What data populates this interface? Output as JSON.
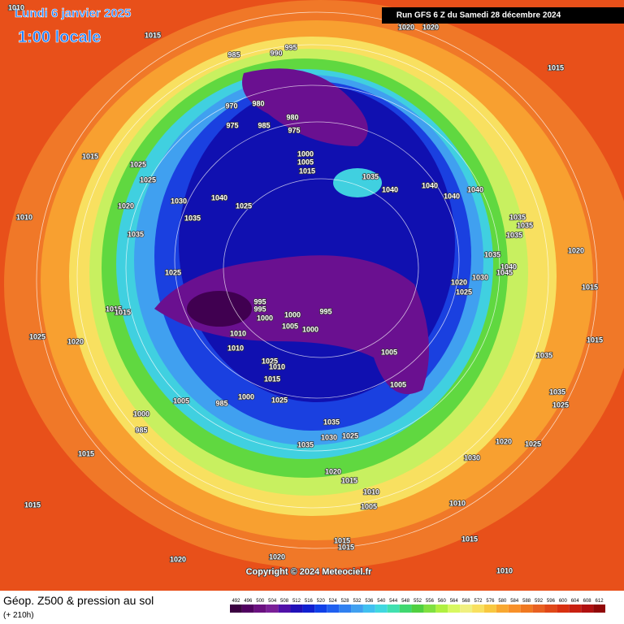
{
  "header": {
    "date": "Lundi 6 janvier 2025",
    "time": "1:00 locale",
    "run": "Run GFS 6 Z du Samedi 28 décembre 2024"
  },
  "footer": {
    "title": "Géop. Z500 & pression au sol",
    "lead": "(+ 210h)",
    "copyright": "Copyright © 2024 Meteociel.fr"
  },
  "colorbar": {
    "ticks": [
      492,
      496,
      500,
      504,
      508,
      512,
      516,
      520,
      524,
      528,
      532,
      536,
      540,
      544,
      548,
      552,
      556,
      560,
      564,
      568,
      572,
      576,
      580,
      584,
      588,
      592,
      596,
      600,
      604,
      608,
      612
    ],
    "colors": [
      "#3a0040",
      "#500060",
      "#6a1080",
      "#7a2098",
      "#5010a8",
      "#2010b8",
      "#1020d0",
      "#1040e8",
      "#2060f0",
      "#3080f0",
      "#40a0f0",
      "#40c0f0",
      "#40d8e0",
      "#40e0b0",
      "#40d870",
      "#50d040",
      "#80e040",
      "#b0f040",
      "#d8f860",
      "#f0f080",
      "#f8e060",
      "#f8c840",
      "#f8a830",
      "#f89028",
      "#f07820",
      "#e86020",
      "#e04818",
      "#d83010",
      "#c82010",
      "#b01010",
      "#900808"
    ]
  },
  "isobar_labels": [
    1010,
    1015,
    1020,
    1020,
    1015,
    995,
    990,
    985,
    970,
    980,
    975,
    985,
    980,
    975,
    1000,
    1005,
    1015,
    1015,
    1025,
    1025,
    1030,
    1040,
    1020,
    1035,
    1025,
    1010,
    1035,
    1035,
    1040,
    1040,
    1040,
    1040,
    1035,
    1035,
    1035,
    1020,
    1035,
    1040,
    1045,
    1020,
    1025,
    1030,
    1015,
    1025,
    1015,
    1015,
    995,
    995,
    1000,
    1000,
    995,
    1005,
    1000,
    1010,
    1010,
    1025,
    1020,
    1015,
    1005,
    1035,
    1025,
    1010,
    1015,
    1005,
    1035,
    1025,
    1005,
    1000,
    985,
    985,
    1000,
    1025,
    1035,
    1030,
    1025,
    1035,
    1020,
    1025,
    1015,
    1030,
    1020,
    1015,
    1010,
    1005,
    1010,
    1015,
    1015,
    1015,
    1015,
    1020,
    1020,
    1010
  ]
}
